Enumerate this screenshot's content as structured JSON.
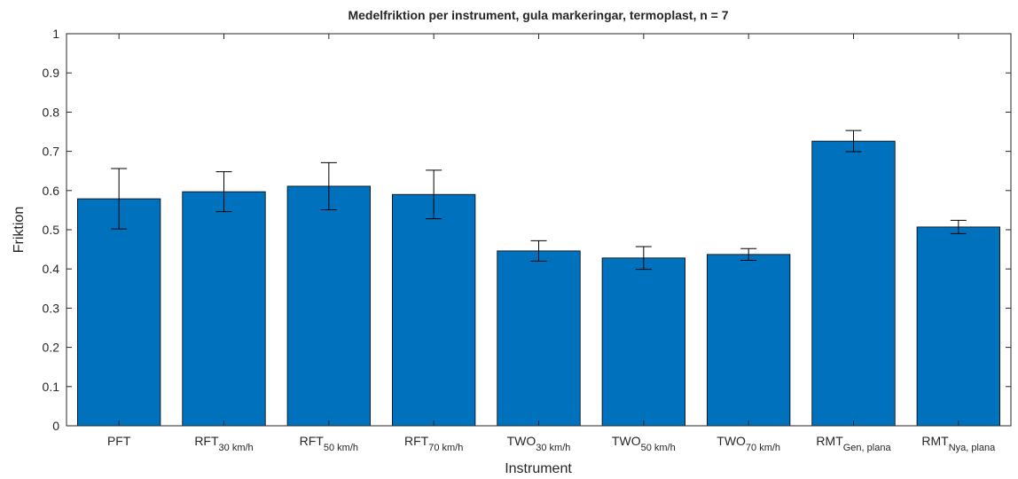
{
  "chart_data": {
    "type": "bar",
    "title": "Medelfriktion per instrument, gula markeringar, termoplast, n = 7",
    "x_label": "Instrument",
    "y_label": "Friktion",
    "categories": [
      {
        "text": "PFT"
      },
      {
        "text": "RFT",
        "subscript": "30 km/h"
      },
      {
        "text": "RFT",
        "subscript": "50 km/h"
      },
      {
        "text": "RFT",
        "subscript": "70 km/h"
      },
      {
        "text": "TWO",
        "subscript": "30 km/h"
      },
      {
        "text": "TWO",
        "subscript": "50 km/h"
      },
      {
        "text": "TWO",
        "subscript": "70 km/h"
      },
      {
        "text": "RMT",
        "subscript": "Gen, plana"
      },
      {
        "text": "RMT",
        "subscript": "Nya, plana"
      }
    ],
    "values": [
      0.579,
      0.597,
      0.611,
      0.59,
      0.446,
      0.428,
      0.437,
      0.726,
      0.507
    ],
    "errors": [
      0.077,
      0.051,
      0.06,
      0.062,
      0.026,
      0.029,
      0.015,
      0.027,
      0.017
    ],
    "color": "#0072bd",
    "ylim": [
      0,
      1
    ],
    "yticks": [
      0,
      0.1,
      0.2,
      0.3,
      0.4,
      0.5,
      0.6,
      0.7,
      0.8,
      0.9,
      1
    ]
  }
}
